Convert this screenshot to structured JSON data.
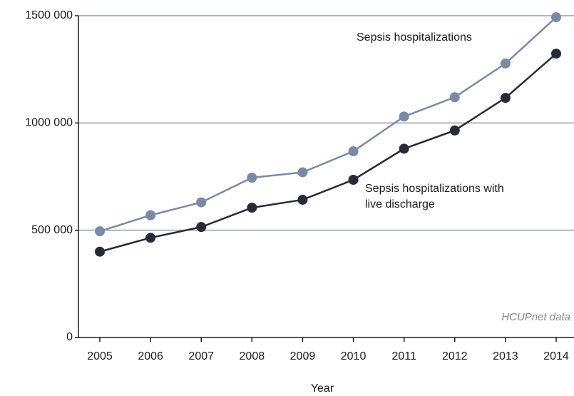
{
  "chart_data": {
    "type": "line",
    "x_label": "Year",
    "source": "HCUPnet data",
    "categories": [
      "2005",
      "2006",
      "2007",
      "2008",
      "2009",
      "2010",
      "2011",
      "2012",
      "2013",
      "2014"
    ],
    "series": [
      {
        "name": "Sepsis hospitalizations",
        "color": "#7b8aa4",
        "values": [
          495000,
          570000,
          630000,
          745000,
          770000,
          868000,
          1030000,
          1120000,
          1277000,
          1493000
        ]
      },
      {
        "name": "Sepsis hospitalizations with live discharge",
        "color": "#272b39",
        "values": [
          400000,
          465000,
          515000,
          605000,
          642000,
          735000,
          880000,
          965000,
          1117000,
          1323000
        ]
      }
    ],
    "ylim": [
      0,
      1500000
    ],
    "yticks": [
      0,
      {
        "value": 500000,
        "label": "500 000"
      },
      {
        "value": 1000000,
        "label": "1000 000"
      },
      {
        "value": 1500000,
        "label": "1500 000"
      }
    ],
    "grid": true
  }
}
